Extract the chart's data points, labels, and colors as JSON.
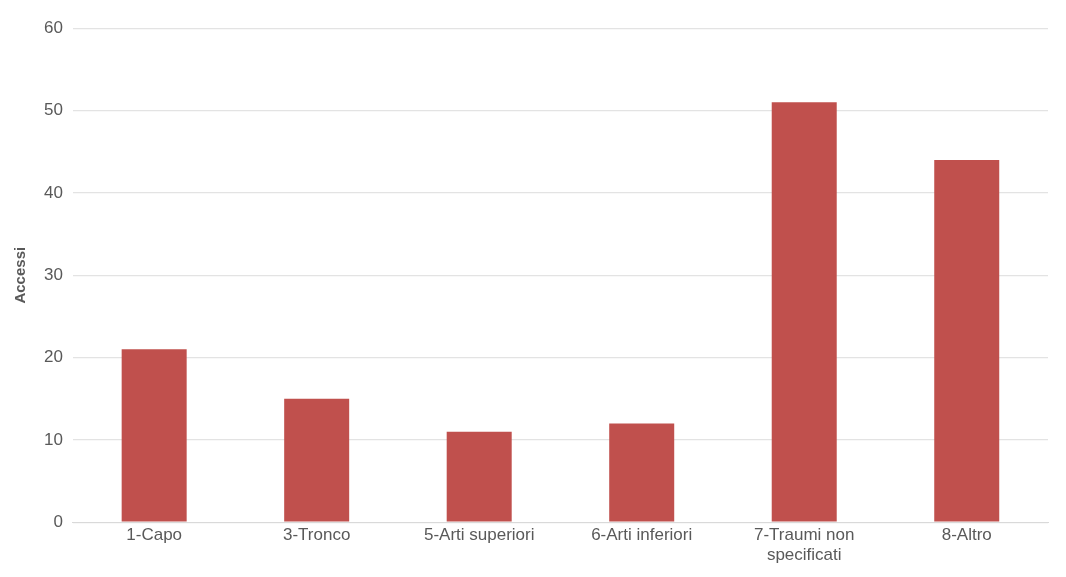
{
  "chart_data": {
    "type": "bar",
    "ylabel": "Accessi",
    "categories": [
      "1-Capo",
      "3-Tronco",
      "5-Arti superiori",
      "6-Arti inferiori",
      "7-Traumi non specificati",
      "8-Altro"
    ],
    "values": [
      21,
      15,
      11,
      12,
      51,
      44
    ],
    "color": "#c0504d",
    "ylim": [
      0,
      60
    ],
    "yticks": [
      0,
      10,
      20,
      30,
      40,
      50,
      60
    ],
    "grid": "y",
    "legend": false
  }
}
